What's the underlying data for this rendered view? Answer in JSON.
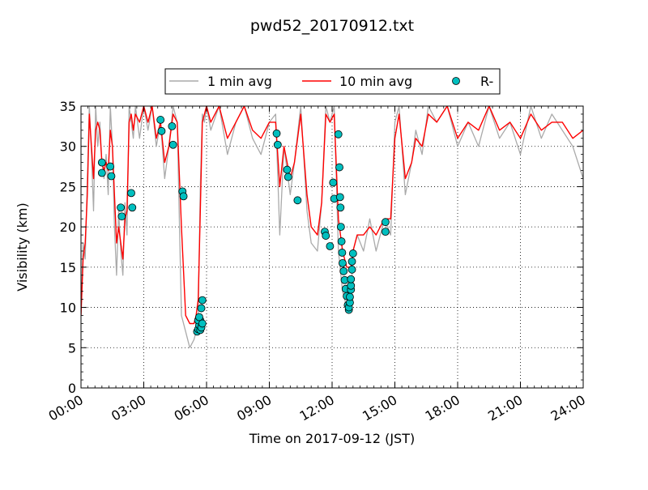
{
  "chart_data": {
    "type": "line",
    "title": "pwd52_20170912.txt",
    "xlabel": "Time on 2017-09-12 (JST)",
    "ylabel": "Visibility (km)",
    "xlim": [
      0,
      24
    ],
    "ylim": [
      0,
      35
    ],
    "x_ticks": [
      0,
      3,
      6,
      9,
      12,
      15,
      18,
      21,
      24
    ],
    "x_tick_labels": [
      "00:00",
      "03:00",
      "06:00",
      "09:00",
      "12:00",
      "15:00",
      "18:00",
      "21:00",
      "24:00"
    ],
    "y_ticks": [
      0,
      5,
      10,
      15,
      20,
      25,
      30,
      35
    ],
    "y_tick_labels": [
      "0",
      "5",
      "10",
      "15",
      "20",
      "25",
      "30",
      "35"
    ],
    "grid": true,
    "legend_position": "top-center",
    "series": [
      {
        "name": "1 min avg",
        "kind": "line",
        "color": "#aaaaaa",
        "x": [
          0.0,
          0.1,
          0.2,
          0.3,
          0.4,
          0.5,
          0.6,
          0.7,
          0.8,
          0.9,
          1.0,
          1.1,
          1.2,
          1.3,
          1.4,
          1.5,
          1.6,
          1.7,
          1.8,
          1.9,
          2.0,
          2.1,
          2.2,
          2.3,
          2.4,
          2.5,
          2.6,
          2.8,
          3.0,
          3.2,
          3.4,
          3.6,
          3.8,
          4.0,
          4.2,
          4.4,
          4.6,
          4.8,
          5.0,
          5.2,
          5.4,
          5.5,
          5.6,
          5.7,
          5.8,
          5.9,
          6.0,
          6.2,
          6.6,
          7.0,
          7.4,
          7.8,
          8.2,
          8.6,
          9.0,
          9.3,
          9.5,
          9.7,
          10.0,
          10.2,
          10.5,
          10.8,
          11.0,
          11.3,
          11.5,
          11.7,
          11.9,
          12.1,
          12.3,
          12.5,
          12.7,
          12.8,
          12.9,
          13.0,
          13.2,
          13.5,
          13.8,
          14.1,
          14.5,
          14.8,
          15.0,
          15.2,
          15.5,
          15.8,
          16.0,
          16.3,
          16.6,
          17.0,
          17.5,
          18.0,
          18.5,
          19.0,
          19.5,
          20.0,
          20.5,
          21.0,
          21.5,
          22.0,
          22.5,
          23.0,
          23.5,
          24.0
        ],
        "y": [
          9,
          18,
          16,
          26,
          35,
          29,
          22,
          35,
          30,
          33,
          28,
          26,
          29,
          24,
          35,
          30,
          20,
          14,
          22,
          17,
          14,
          23,
          19,
          35,
          33,
          31,
          35,
          31,
          35,
          32,
          35,
          30,
          33,
          26,
          30,
          35,
          33,
          9,
          7,
          5,
          6,
          7,
          9,
          25,
          34,
          33,
          35,
          32,
          35,
          29,
          33,
          35,
          31,
          29,
          33,
          34,
          19,
          30,
          24,
          28,
          35,
          22,
          18,
          17,
          23,
          35,
          33,
          35,
          17,
          12,
          10,
          12,
          11,
          17,
          19,
          17,
          21,
          17,
          21,
          19,
          33,
          35,
          24,
          28,
          32,
          29,
          35,
          33,
          35,
          30,
          33,
          30,
          35,
          31,
          33,
          29,
          35,
          31,
          34,
          32,
          30,
          26
        ]
      },
      {
        "name": "10 min avg",
        "kind": "line",
        "color": "#ff0000",
        "x": [
          0.0,
          0.1,
          0.2,
          0.3,
          0.4,
          0.5,
          0.6,
          0.7,
          0.8,
          0.9,
          1.0,
          1.1,
          1.2,
          1.3,
          1.4,
          1.5,
          1.6,
          1.7,
          1.8,
          1.9,
          2.0,
          2.1,
          2.2,
          2.3,
          2.4,
          2.5,
          2.6,
          2.8,
          3.0,
          3.2,
          3.4,
          3.6,
          3.8,
          4.0,
          4.2,
          4.4,
          4.6,
          4.8,
          5.0,
          5.2,
          5.4,
          5.5,
          5.6,
          5.7,
          5.8,
          5.9,
          6.0,
          6.2,
          6.6,
          7.0,
          7.4,
          7.8,
          8.2,
          8.6,
          9.0,
          9.3,
          9.5,
          9.7,
          10.0,
          10.2,
          10.5,
          10.8,
          11.0,
          11.3,
          11.5,
          11.7,
          11.9,
          12.1,
          12.3,
          12.5,
          12.7,
          12.8,
          12.9,
          13.0,
          13.2,
          13.5,
          13.8,
          14.1,
          14.5,
          14.8,
          15.0,
          15.2,
          15.5,
          15.8,
          16.0,
          16.3,
          16.6,
          17.0,
          17.5,
          18.0,
          18.5,
          19.0,
          19.5,
          20.0,
          20.5,
          21.0,
          21.5,
          22.0,
          22.5,
          23.0,
          23.5,
          24.0
        ],
        "y": [
          9,
          16,
          18,
          24,
          34,
          30,
          26,
          32,
          33,
          32,
          28,
          27,
          28,
          27,
          32,
          30,
          24,
          18,
          20,
          18,
          16,
          21,
          22,
          33,
          34,
          32,
          34,
          33,
          35,
          33,
          35,
          31,
          33,
          28,
          30,
          34,
          33,
          20,
          9,
          8,
          8,
          9,
          11,
          22,
          33,
          34,
          35,
          33,
          35,
          31,
          33,
          35,
          32,
          31,
          33,
          33,
          25,
          30,
          26,
          28,
          34,
          24,
          20,
          19,
          23,
          34,
          33,
          34,
          21,
          17,
          15,
          15,
          15,
          17,
          19,
          19,
          20,
          19,
          21,
          21,
          31,
          34,
          26,
          28,
          31,
          30,
          34,
          33,
          35,
          31,
          33,
          32,
          35,
          32,
          33,
          31,
          34,
          32,
          33,
          33,
          31,
          32
        ]
      },
      {
        "name": "R-",
        "kind": "scatter",
        "color": "#00bfbf",
        "x": [
          1.0,
          1.0,
          1.4,
          1.45,
          1.9,
          1.95,
          2.4,
          2.45,
          3.8,
          3.85,
          4.35,
          4.4,
          4.85,
          4.9,
          5.55,
          5.6,
          5.65,
          5.7,
          5.75,
          5.8,
          5.6,
          5.65,
          5.7,
          5.75,
          5.8,
          9.35,
          9.4,
          9.85,
          9.9,
          10.35,
          11.65,
          11.7,
          11.9,
          12.05,
          12.1,
          12.3,
          12.35,
          12.38,
          12.4,
          12.42,
          12.45,
          12.48,
          12.5,
          12.55,
          12.6,
          12.65,
          12.7,
          12.75,
          12.8,
          12.8,
          12.85,
          12.85,
          12.9,
          12.9,
          12.9,
          12.95,
          12.95,
          13.0,
          14.55,
          14.55
        ],
        "y": [
          28,
          26.7,
          27.5,
          26.3,
          22.4,
          21.3,
          24.2,
          22.4,
          33.3,
          31.9,
          32.5,
          30.2,
          24.4,
          23.8,
          7.0,
          7.3,
          7.8,
          8.4,
          9.9,
          10.9,
          8.4,
          8.8,
          7.2,
          7.5,
          8.0,
          31.6,
          30.2,
          27.1,
          26.2,
          23.3,
          19.4,
          18.9,
          17.6,
          25.5,
          23.5,
          31.5,
          27.4,
          23.7,
          22.4,
          20.0,
          18.2,
          16.8,
          15.5,
          14.5,
          13.4,
          12.3,
          11.4,
          10.3,
          9.7,
          10.0,
          10.6,
          11.3,
          12.2,
          12.7,
          13.5,
          14.7,
          15.7,
          16.7,
          20.6,
          19.4
        ]
      }
    ]
  }
}
